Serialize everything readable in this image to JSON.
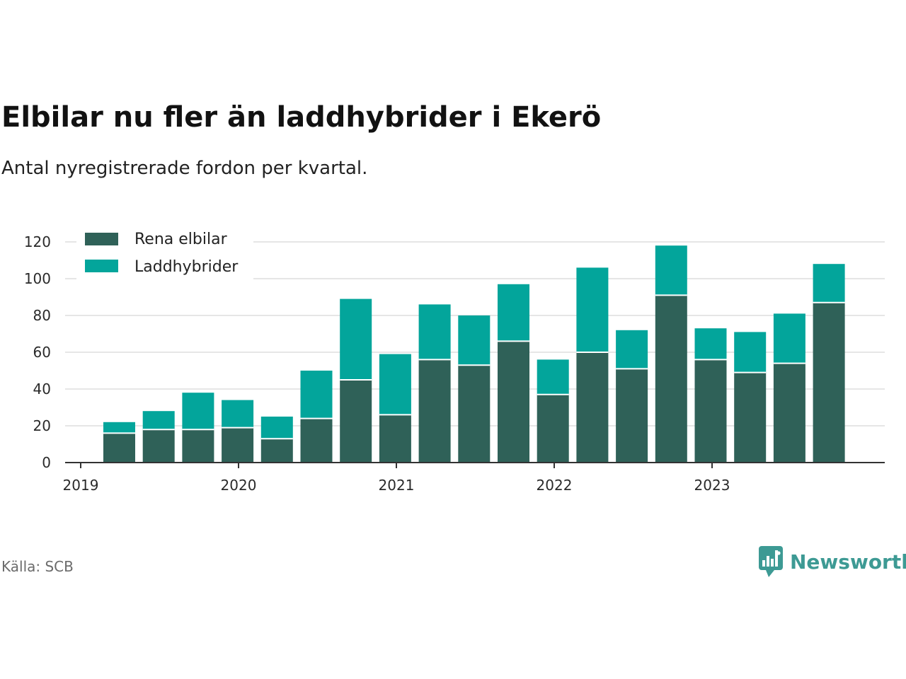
{
  "title": "Elbilar nu fler än laddhybrider i Ekerö",
  "subtitle": "Antal nyregistrerade fordon per kvartal.",
  "source": "Källa: SCB",
  "brand": "Newsworthy",
  "colors": {
    "rena_elbilar": "#2f6158",
    "laddhybrider": "#03a59b",
    "grid": "#dddddd",
    "axis": "#333333",
    "brand": "#3d9a94"
  },
  "chart_data": {
    "type": "bar",
    "stacked": true,
    "categories": [
      "2019 Q2",
      "2019 Q3",
      "2019 Q4",
      "2020 Q1",
      "2020 Q2",
      "2020 Q3",
      "2020 Q4",
      "2021 Q1",
      "2021 Q2",
      "2021 Q3",
      "2021 Q4",
      "2022 Q1",
      "2022 Q2",
      "2022 Q3",
      "2022 Q4",
      "2023 Q1",
      "2023 Q2",
      "2023 Q3",
      "2023 Q4"
    ],
    "series": [
      {
        "name": "Rena elbilar",
        "values": [
          16,
          18,
          18,
          19,
          13,
          24,
          45,
          26,
          56,
          53,
          66,
          37,
          60,
          51,
          91,
          56,
          49,
          54,
          87
        ]
      },
      {
        "name": "Laddhybrider",
        "values": [
          6,
          10,
          20,
          15,
          12,
          26,
          44,
          33,
          30,
          27,
          31,
          19,
          46,
          21,
          27,
          17,
          22,
          27,
          21
        ]
      }
    ],
    "ylim": [
      0,
      120
    ],
    "yticks": [
      "0",
      "20",
      "40",
      "60",
      "80",
      "100",
      "120"
    ],
    "xticks": [
      "2019",
      "2020",
      "2021",
      "2022",
      "2023"
    ],
    "xlabel": "",
    "ylabel": "",
    "grid": true,
    "legend_position": "top-left"
  }
}
